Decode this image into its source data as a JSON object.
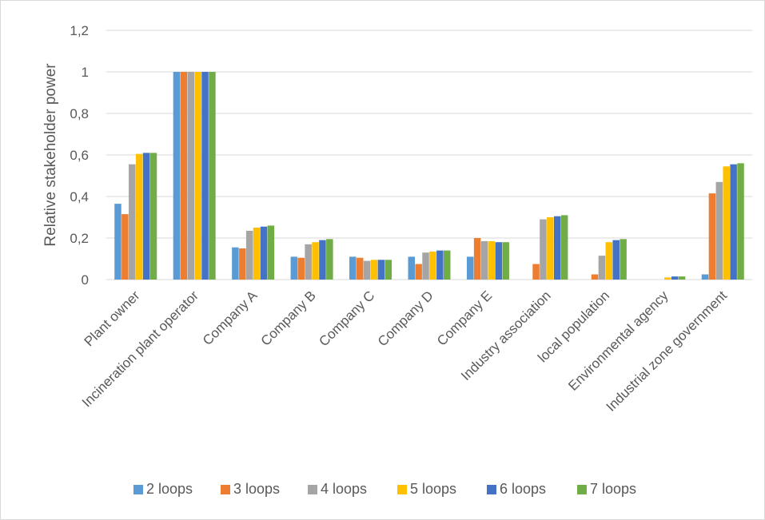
{
  "chart_data": {
    "type": "bar",
    "title": "",
    "xlabel": "",
    "ylabel": "Relative stakeholder power",
    "ylim": [
      0,
      1.2
    ],
    "yticks": [
      "0",
      "0,2",
      "0,4",
      "0,6",
      "0,8",
      "1",
      "1,2"
    ],
    "ytick_values": [
      0,
      0.2,
      0.4,
      0.6,
      0.8,
      1.0,
      1.2
    ],
    "grid": true,
    "legend_position": "bottom",
    "categories": [
      "Plant owner",
      "Incineration plant operator",
      "Company A",
      "Company B",
      "Company C",
      "Company D",
      "Company E",
      "Industry association",
      "local population",
      "Environmental agency",
      "Industrial zone government"
    ],
    "series": [
      {
        "name": "2 loops",
        "color": "#5b9bd5",
        "values": [
          0.365,
          1.0,
          0.155,
          0.11,
          0.11,
          0.11,
          0.11,
          0,
          0,
          0,
          0.025
        ]
      },
      {
        "name": "3 loops",
        "color": "#ed7d31",
        "values": [
          0.315,
          1.0,
          0.15,
          0.105,
          0.105,
          0.075,
          0.2,
          0.075,
          0.025,
          0,
          0.415
        ]
      },
      {
        "name": "4 loops",
        "color": "#a5a5a5",
        "values": [
          0.555,
          1.0,
          0.235,
          0.17,
          0.09,
          0.13,
          0.185,
          0.29,
          0.115,
          0,
          0.47
        ]
      },
      {
        "name": "5 loops",
        "color": "#ffc000",
        "values": [
          0.605,
          1.0,
          0.25,
          0.18,
          0.095,
          0.135,
          0.185,
          0.3,
          0.18,
          0.01,
          0.545
        ]
      },
      {
        "name": "6 loops",
        "color": "#4472c4",
        "values": [
          0.61,
          1.0,
          0.255,
          0.19,
          0.095,
          0.14,
          0.18,
          0.305,
          0.19,
          0.015,
          0.555
        ]
      },
      {
        "name": "7 loops",
        "color": "#70ad47",
        "values": [
          0.61,
          1.0,
          0.26,
          0.195,
          0.095,
          0.14,
          0.18,
          0.31,
          0.195,
          0.015,
          0.56
        ]
      }
    ]
  }
}
